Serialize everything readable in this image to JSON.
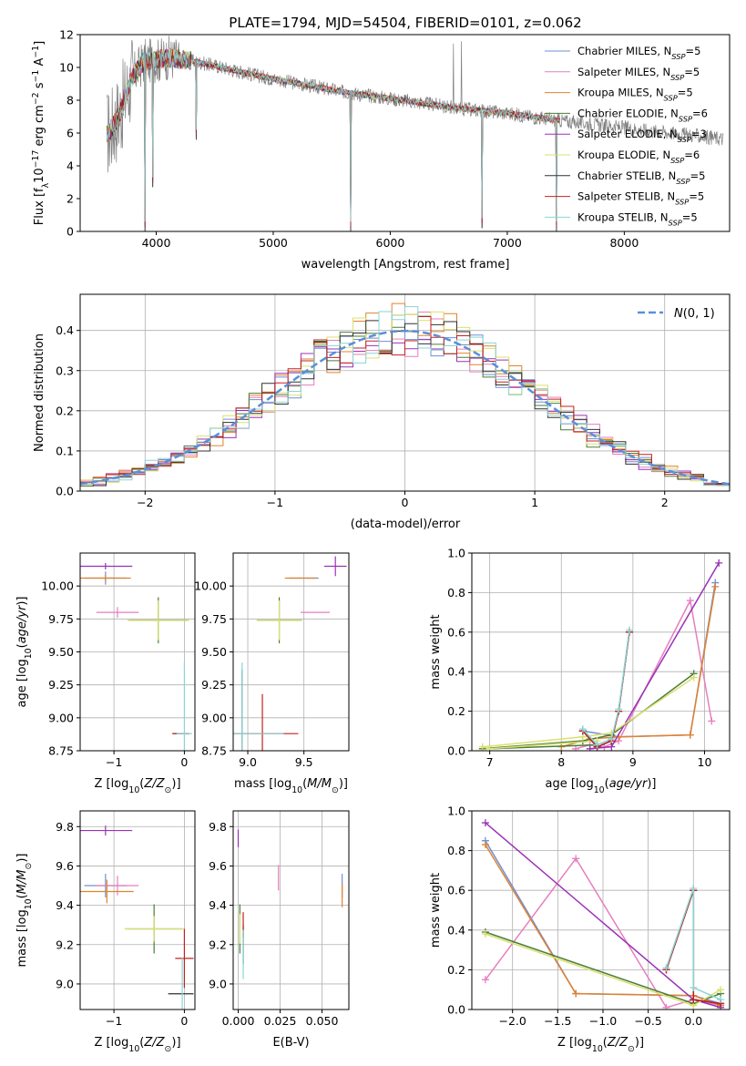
{
  "title": "PLATE=1794, MJD=54504, FIBERID=0101, z=0.062",
  "colors": {
    "chabrier_miles": "#6f8fd6",
    "salpeter_miles": "#e57fbf",
    "kroupa_miles": "#e0832e",
    "chabrier_elodie": "#4a7d3a",
    "salpeter_elodie": "#9b30b8",
    "kroupa_elodie": "#dbe06e",
    "chabrier_stelib": "#303030",
    "salpeter_stelib": "#c42020",
    "kroupa_stelib": "#8ad4d4",
    "data": "#808080",
    "grid": "#b0b0b0",
    "normal": "#5b8fd9"
  },
  "chart_data": [
    {
      "id": "spectrum",
      "type": "line",
      "xlabel": "wavelength [Angstrom, rest frame]",
      "ylabel": "Flux [f_λ10^{-17} erg cm^{-2} s^{-1} A^{-1}]",
      "xlim": [
        3350,
        8900
      ],
      "ylim": [
        0,
        12
      ],
      "xticks": [
        4000,
        5000,
        6000,
        7000,
        8000
      ],
      "yticks": [
        0,
        2,
        4,
        6,
        8,
        10,
        12
      ],
      "grid": false,
      "legend_position": "top-right",
      "series": [
        {
          "name": "Chabrier MILES, N_SSP=5",
          "color_key": "chabrier_miles"
        },
        {
          "name": "Salpeter MILES, N_SSP=5",
          "color_key": "salpeter_miles"
        },
        {
          "name": "Kroupa MILES, N_SSP=5",
          "color_key": "kroupa_miles"
        },
        {
          "name": "Chabrier ELODIE, N_SSP=6",
          "color_key": "chabrier_elodie"
        },
        {
          "name": "Salpeter ELODIE, N_SSP=3",
          "color_key": "salpeter_elodie"
        },
        {
          "name": "Kroupa ELODIE, N_SSP=6",
          "color_key": "kroupa_elodie"
        },
        {
          "name": "Chabrier STELIB, N_SSP=5",
          "color_key": "chabrier_stelib"
        },
        {
          "name": "Salpeter STELIB, N_SSP=5",
          "color_key": "salpeter_stelib"
        },
        {
          "name": "Kroupa STELIB, N_SSP=5",
          "color_key": "kroupa_stelib"
        }
      ],
      "continuum": {
        "x": [
          3600,
          3700,
          3800,
          3900,
          4000,
          4100,
          4300,
          4500,
          4800,
          5000,
          5300,
          5600,
          6000,
          6300,
          6600,
          7000,
          7400
        ],
        "y": [
          6.0,
          7.4,
          9.5,
          10.4,
          10.4,
          10.6,
          10.4,
          10.1,
          9.6,
          9.3,
          8.9,
          8.5,
          8.1,
          7.8,
          7.5,
          7.2,
          6.8
        ]
      },
      "dips": [
        {
          "x": 3905,
          "y": 0.0
        },
        {
          "x": 3970,
          "y": 2.7
        },
        {
          "x": 4340,
          "y": 5.6
        },
        {
          "x": 5663,
          "y": 0.0
        },
        {
          "x": 6786,
          "y": 0.2
        },
        {
          "x": 7420,
          "y": 0.0
        }
      ],
      "data_range": [
        3580,
        8850
      ],
      "model_range": [
        3580,
        7450
      ]
    },
    {
      "id": "residuals",
      "type": "histogram",
      "xlabel": "(data-model)/error",
      "ylabel": "Normed distribution",
      "xlim": [
        -2.5,
        2.5
      ],
      "ylim": [
        0,
        0.49
      ],
      "xticks": [
        -2,
        -1,
        0,
        1,
        2
      ],
      "yticks": [
        0.0,
        0.1,
        0.2,
        0.3,
        0.4
      ],
      "grid": true,
      "legend_position": "top-right",
      "legend": "N(0,1)",
      "normal": {
        "mu": 0,
        "sigma": 1
      },
      "bin_width": 0.1
    },
    {
      "id": "age_vs_Z",
      "type": "errorbar",
      "xlabel": "Z [log10(Z/Z⊙)]",
      "ylabel": "age  [log10(age/yr)]",
      "xlim": [
        -1.48,
        0.15
      ],
      "ylim": [
        8.75,
        10.25
      ],
      "xticks": [
        -1,
        0
      ],
      "yticks": [
        8.75,
        9.0,
        9.25,
        9.5,
        9.75,
        10.0
      ],
      "grid": true,
      "points": [
        {
          "c": "chabrier_miles",
          "x": -1.12,
          "xe": 0.3,
          "y": 10.06,
          "ye": 0.1
        },
        {
          "c": "salpeter_miles",
          "x": -0.95,
          "xe": 0.3,
          "y": 9.8,
          "ye": 0.08
        },
        {
          "c": "kroupa_miles",
          "x": -1.12,
          "xe": 0.36,
          "y": 10.06,
          "ye": 0.05
        },
        {
          "c": "chabrier_elodie",
          "x": -0.37,
          "xe": 0.42,
          "y": 9.74,
          "ye": 0.35
        },
        {
          "c": "salpeter_elodie",
          "x": -1.12,
          "xe": 0.38,
          "y": 10.15,
          "ye": 0.05
        },
        {
          "c": "kroupa_elodie",
          "x": -0.37,
          "xe": 0.44,
          "y": 9.74,
          "ye": 0.3
        },
        {
          "c": "chabrier_stelib",
          "x": -0.05,
          "xe": 0.12,
          "y": 8.88,
          "ye": 0.0
        },
        {
          "c": "salpeter_stelib",
          "x": -0.05,
          "xe": 0.12,
          "y": 8.88,
          "ye": 0.0
        },
        {
          "c": "kroupa_stelib",
          "x": 0.0,
          "xe": 0.11,
          "y": 8.88,
          "ye": 1.08
        }
      ]
    },
    {
      "id": "age_vs_mass",
      "type": "errorbar",
      "xlabel": "mass [log10(M/M⊙)]",
      "ylabel": "",
      "xlim": [
        8.87,
        9.9
      ],
      "ylim": [
        8.75,
        10.25
      ],
      "xticks": [
        9.0,
        9.5
      ],
      "yticks": [
        8.75,
        9.0,
        9.25,
        9.5,
        9.75,
        10.0
      ],
      "grid": true,
      "points": [
        {
          "c": "chabrier_miles",
          "x": 9.5,
          "xe": 0.13,
          "y": 10.06,
          "ye": 0.0
        },
        {
          "c": "salpeter_miles",
          "x": 9.6,
          "xe": 0.13,
          "y": 9.8,
          "ye": 0.0
        },
        {
          "c": "kroupa_miles",
          "x": 9.47,
          "xe": 0.14,
          "y": 10.06,
          "ye": 0.0
        },
        {
          "c": "chabrier_elodie",
          "x": 9.28,
          "xe": 0.2,
          "y": 9.74,
          "ye": 0.35
        },
        {
          "c": "salpeter_elodie",
          "x": 9.78,
          "xe": 0.1,
          "y": 10.15,
          "ye": 0.15
        },
        {
          "c": "kroupa_elodie",
          "x": 9.28,
          "xe": 0.2,
          "y": 9.74,
          "ye": 0.3
        },
        {
          "c": "chabrier_stelib",
          "x": 8.95,
          "xe": 0.0,
          "y": 8.88,
          "ye": 0.97
        },
        {
          "c": "salpeter_stelib",
          "x": 9.13,
          "xe": 0.32,
          "y": 8.88,
          "ye": 0.6
        },
        {
          "c": "kroupa_stelib",
          "x": 8.95,
          "xe": 0.37,
          "y": 8.88,
          "ye": 1.08
        }
      ]
    },
    {
      "id": "mass_weight_vs_age",
      "type": "line",
      "xlabel": "age  [log10(age/yr)]",
      "ylabel": "mass weight",
      "xlim": [
        6.75,
        10.35
      ],
      "ylim": [
        0,
        1.0
      ],
      "xticks": [
        7,
        8,
        9,
        10
      ],
      "yticks": [
        0.0,
        0.2,
        0.4,
        0.6,
        0.8,
        1.0
      ],
      "grid": true,
      "series": [
        {
          "c": "chabrier_miles",
          "x": [
            10.15,
            9.8,
            8.8,
            8.3,
            8.5
          ],
          "y": [
            0.85,
            0.08,
            0.07,
            0.1,
            0.03
          ]
        },
        {
          "c": "salpeter_miles",
          "x": [
            10.1,
            9.8,
            8.8,
            8.6,
            8.4,
            8.2
          ],
          "y": [
            0.15,
            0.76,
            0.05,
            0.02,
            0.03,
            0.01
          ]
        },
        {
          "c": "kroupa_miles",
          "x": [
            10.15,
            9.8,
            8.8,
            8.4,
            8.0
          ],
          "y": [
            0.83,
            0.08,
            0.07,
            0.06,
            0.02
          ]
        },
        {
          "c": "chabrier_elodie",
          "x": [
            9.85,
            8.7,
            8.3,
            6.9,
            7.0,
            8.5
          ],
          "y": [
            0.39,
            0.08,
            0.05,
            0.01,
            0.01,
            0.03
          ]
        },
        {
          "c": "salpeter_elodie",
          "x": [
            10.2,
            8.7,
            8.4
          ],
          "y": [
            0.95,
            0.02,
            0.01
          ]
        },
        {
          "c": "kroupa_elodie",
          "x": [
            9.85,
            8.7,
            8.3,
            6.9,
            7.0,
            8.5
          ],
          "y": [
            0.37,
            0.09,
            0.07,
            0.02,
            0.01,
            0.05
          ]
        },
        {
          "c": "chabrier_stelib",
          "x": [
            8.95,
            8.8,
            8.7,
            8.5,
            8.3
          ],
          "y": [
            0.6,
            0.2,
            0.05,
            0.02,
            0.1
          ]
        },
        {
          "c": "salpeter_stelib",
          "x": [
            8.95,
            8.8,
            8.7,
            8.5,
            8.3
          ],
          "y": [
            0.6,
            0.2,
            0.05,
            0.02,
            0.1
          ]
        },
        {
          "c": "kroupa_stelib",
          "x": [
            8.95,
            8.8,
            8.7,
            8.5,
            8.3
          ],
          "y": [
            0.61,
            0.21,
            0.06,
            0.03,
            0.11
          ]
        }
      ]
    },
    {
      "id": "mass_vs_Z",
      "type": "errorbar",
      "xlabel": "Z [log10(Z/Z⊙)]",
      "ylabel": "mass [log10(M/M⊙)]",
      "xlim": [
        -1.48,
        0.15
      ],
      "ylim": [
        8.87,
        9.88
      ],
      "xticks": [
        -1,
        0
      ],
      "yticks": [
        9.0,
        9.2,
        9.4,
        9.6,
        9.8
      ],
      "grid": true,
      "points": [
        {
          "c": "chabrier_miles",
          "x": -1.12,
          "xe": 0.3,
          "y": 9.5,
          "ye": 0.12
        },
        {
          "c": "salpeter_miles",
          "x": -0.95,
          "xe": 0.3,
          "y": 9.5,
          "ye": 0.1
        },
        {
          "c": "kroupa_miles",
          "x": -1.1,
          "xe": 0.38,
          "y": 9.47,
          "ye": 0.12
        },
        {
          "c": "chabrier_elodie",
          "x": -0.43,
          "xe": 0.4,
          "y": 9.28,
          "ye": 0.25
        },
        {
          "c": "salpeter_elodie",
          "x": -1.12,
          "xe": 0.38,
          "y": 9.78,
          "ye": 0.05
        },
        {
          "c": "kroupa_elodie",
          "x": -0.43,
          "xe": 0.42,
          "y": 9.28,
          "ye": 0.13
        },
        {
          "c": "chabrier_stelib",
          "x": -0.05,
          "xe": 0.18,
          "y": 8.95,
          "ye": 0.0
        },
        {
          "c": "salpeter_stelib",
          "x": 0.0,
          "xe": 0.13,
          "y": 9.13,
          "ye": 0.3
        },
        {
          "c": "kroupa_stelib",
          "x": -0.03,
          "xe": 0.0,
          "y": 8.95,
          "ye": 0.37
        }
      ]
    },
    {
      "id": "mass_vs_ebv",
      "type": "errorbar",
      "xlabel": "E(B-V)",
      "ylabel": "",
      "xlim": [
        -0.003,
        0.066
      ],
      "ylim": [
        8.87,
        9.88
      ],
      "xticks": [
        0.0,
        0.025,
        0.05
      ],
      "yticks": [
        9.0,
        9.2,
        9.4,
        9.6,
        9.8
      ],
      "grid": true,
      "points": [
        {
          "c": "chabrier_miles",
          "x": 0.062,
          "xe": 0,
          "y": 9.5,
          "ye": 0.12
        },
        {
          "c": "salpeter_miles",
          "x": 0.024,
          "xe": 0,
          "y": 9.54,
          "ye": 0.13
        },
        {
          "c": "kroupa_miles",
          "x": 0.062,
          "xe": 0,
          "y": 9.45,
          "ye": 0.12
        },
        {
          "c": "chabrier_elodie",
          "x": 0.001,
          "xe": 0,
          "y": 9.28,
          "ye": 0.25
        },
        {
          "c": "salpeter_elodie",
          "x": 0.0,
          "xe": 0,
          "y": 9.74,
          "ye": 0.09
        },
        {
          "c": "kroupa_elodie",
          "x": 0.001,
          "xe": 0,
          "y": 9.28,
          "ye": 0.15
        },
        {
          "c": "chabrier_stelib",
          "x": 0.003,
          "xe": 0,
          "y": 9.2,
          "ye": 0.2
        },
        {
          "c": "salpeter_stelib",
          "x": 0.003,
          "xe": 0,
          "y": 9.3,
          "ye": 0.13
        },
        {
          "c": "kroupa_stelib",
          "x": 0.003,
          "xe": 0,
          "y": 9.15,
          "ye": 0.25
        }
      ]
    },
    {
      "id": "mass_weight_vs_Z",
      "type": "line",
      "xlabel": "Z [log10(Z/Z⊙)]",
      "ylabel": "mass weight",
      "xlim": [
        -2.45,
        0.4
      ],
      "ylim": [
        0,
        1.0
      ],
      "xticks": [
        -2.0,
        -1.5,
        -1.0,
        -0.5,
        0.0
      ],
      "yticks": [
        0.0,
        0.2,
        0.4,
        0.6,
        0.8,
        1.0
      ],
      "grid": true,
      "series": [
        {
          "c": "chabrier_miles",
          "x": [
            -2.3,
            -1.3,
            0.0,
            0.3
          ],
          "y": [
            0.85,
            0.08,
            0.07,
            0.03
          ]
        },
        {
          "c": "salpeter_miles",
          "x": [
            -2.3,
            -1.3,
            -0.3,
            0.0,
            0.3
          ],
          "y": [
            0.15,
            0.76,
            0.01,
            0.05,
            0.02
          ]
        },
        {
          "c": "kroupa_miles",
          "x": [
            -2.3,
            -1.3,
            0.0,
            0.3
          ],
          "y": [
            0.83,
            0.08,
            0.07,
            0.02
          ]
        },
        {
          "c": "chabrier_elodie",
          "x": [
            -2.3,
            0.0,
            0.3
          ],
          "y": [
            0.39,
            0.03,
            0.08
          ]
        },
        {
          "c": "salpeter_elodie",
          "x": [
            -2.3,
            0.0,
            0.3
          ],
          "y": [
            0.94,
            0.05,
            0.01
          ]
        },
        {
          "c": "kroupa_elodie",
          "x": [
            -2.3,
            0.0,
            0.3
          ],
          "y": [
            0.38,
            0.02,
            0.1
          ]
        },
        {
          "c": "chabrier_stelib",
          "x": [
            -0.3,
            0.0,
            0.0,
            0.3
          ],
          "y": [
            0.2,
            0.6,
            0.05,
            0.03
          ]
        },
        {
          "c": "salpeter_stelib",
          "x": [
            -0.3,
            0.0,
            0.0,
            0.3
          ],
          "y": [
            0.2,
            0.6,
            0.05,
            0.03
          ]
        },
        {
          "c": "kroupa_stelib",
          "x": [
            -0.3,
            0.0,
            0.0,
            0.3
          ],
          "y": [
            0.21,
            0.61,
            0.11,
            0.05
          ]
        }
      ]
    }
  ]
}
